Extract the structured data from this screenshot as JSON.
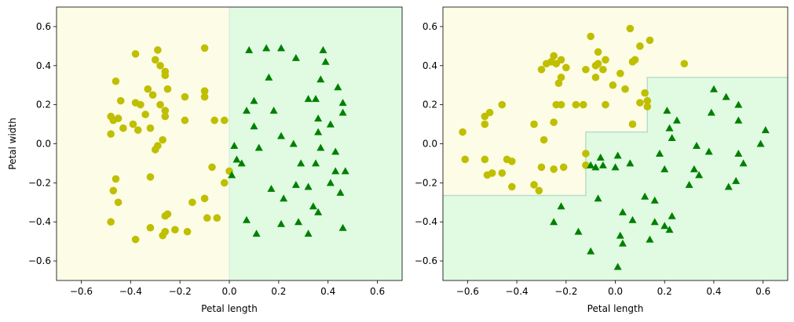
{
  "chart_data": [
    {
      "type": "scatter",
      "xlabel": "Petal length",
      "ylabel": "Petal width",
      "xlim": [
        -0.7,
        0.7
      ],
      "ylim": [
        -0.7,
        0.7
      ],
      "xticks": [
        "−0.6",
        "−0.4",
        "−0.2",
        "0.0",
        "0.2",
        "0.4",
        "0.6"
      ],
      "yticks": [
        "−0.6",
        "−0.4",
        "−0.2",
        "0.0",
        "0.2",
        "0.4",
        "0.6"
      ],
      "xtick_values": [
        -0.6,
        -0.4,
        -0.2,
        0.0,
        0.2,
        0.4,
        0.6
      ],
      "ytick_values": [
        -0.6,
        -0.4,
        -0.2,
        0.0,
        0.2,
        0.4,
        0.6
      ],
      "decision_regions": {
        "class_0_color": "#fdfce6",
        "class_1_color": "#e0fbe2",
        "boundary": [
          [
            -0.7,
            0.0
          ],
          [
            0.7,
            0.0
          ]
        ],
        "boundary_orientation": "vertical",
        "boundary_x": 0.0
      },
      "series": [
        {
          "marker": "circle",
          "color": "#bfbf00",
          "points": [
            [
              -0.38,
              0.46
            ],
            [
              -0.29,
              0.48
            ],
            [
              -0.3,
              0.43
            ],
            [
              -0.1,
              0.49
            ],
            [
              -0.28,
              0.4
            ],
            [
              -0.26,
              0.37
            ],
            [
              -0.26,
              0.35
            ],
            [
              -0.46,
              0.32
            ],
            [
              -0.33,
              0.28
            ],
            [
              -0.25,
              0.28
            ],
            [
              -0.31,
              0.25
            ],
            [
              -0.1,
              0.27
            ],
            [
              -0.1,
              0.24
            ],
            [
              -0.38,
              0.21
            ],
            [
              -0.36,
              0.2
            ],
            [
              -0.44,
              0.22
            ],
            [
              -0.43,
              0.08
            ],
            [
              -0.28,
              0.2
            ],
            [
              -0.34,
              0.15
            ],
            [
              -0.26,
              0.17
            ],
            [
              -0.18,
              0.24
            ],
            [
              -0.18,
              0.12
            ],
            [
              -0.48,
              0.14
            ],
            [
              -0.47,
              0.12
            ],
            [
              -0.45,
              0.13
            ],
            [
              -0.39,
              0.1
            ],
            [
              -0.37,
              0.07
            ],
            [
              -0.32,
              0.08
            ],
            [
              -0.26,
              0.14
            ],
            [
              -0.27,
              0.02
            ],
            [
              -0.48,
              0.05
            ],
            [
              -0.3,
              -0.03
            ],
            [
              -0.29,
              -0.01
            ],
            [
              -0.06,
              0.12
            ],
            [
              -0.02,
              0.12
            ],
            [
              -0.07,
              -0.12
            ],
            [
              -0.46,
              -0.18
            ],
            [
              -0.47,
              -0.24
            ],
            [
              -0.32,
              -0.17
            ],
            [
              -0.45,
              -0.3
            ],
            [
              -0.15,
              -0.3
            ],
            [
              -0.1,
              -0.28
            ],
            [
              -0.26,
              -0.37
            ],
            [
              -0.25,
              -0.36
            ],
            [
              -0.48,
              -0.4
            ],
            [
              -0.32,
              -0.43
            ],
            [
              -0.27,
              -0.47
            ],
            [
              -0.26,
              -0.45
            ],
            [
              -0.22,
              -0.44
            ],
            [
              -0.17,
              -0.45
            ],
            [
              -0.09,
              -0.38
            ],
            [
              -0.05,
              -0.38
            ],
            [
              -0.38,
              -0.49
            ],
            [
              -0.02,
              -0.2
            ],
            [
              0.0,
              -0.14
            ]
          ]
        },
        {
          "marker": "triangle",
          "color": "#008000",
          "points": [
            [
              0.08,
              0.48
            ],
            [
              0.15,
              0.49
            ],
            [
              0.21,
              0.49
            ],
            [
              0.27,
              0.44
            ],
            [
              0.38,
              0.48
            ],
            [
              0.39,
              0.42
            ],
            [
              0.37,
              0.33
            ],
            [
              0.16,
              0.34
            ],
            [
              0.44,
              0.29
            ],
            [
              0.46,
              0.21
            ],
            [
              0.32,
              0.23
            ],
            [
              0.35,
              0.23
            ],
            [
              0.46,
              0.16
            ],
            [
              0.1,
              0.22
            ],
            [
              0.18,
              0.17
            ],
            [
              0.07,
              0.17
            ],
            [
              0.36,
              0.13
            ],
            [
              0.41,
              0.1
            ],
            [
              0.1,
              0.09
            ],
            [
              0.21,
              0.04
            ],
            [
              0.26,
              0.0
            ],
            [
              0.36,
              0.06
            ],
            [
              0.02,
              -0.01
            ],
            [
              0.12,
              -0.02
            ],
            [
              0.37,
              -0.02
            ],
            [
              0.43,
              -0.04
            ],
            [
              0.03,
              -0.08
            ],
            [
              0.05,
              -0.1
            ],
            [
              0.01,
              -0.16
            ],
            [
              0.29,
              -0.1
            ],
            [
              0.35,
              -0.1
            ],
            [
              0.43,
              -0.14
            ],
            [
              0.47,
              -0.14
            ],
            [
              0.17,
              -0.23
            ],
            [
              0.27,
              -0.21
            ],
            [
              0.32,
              -0.22
            ],
            [
              0.41,
              -0.2
            ],
            [
              0.45,
              -0.25
            ],
            [
              0.22,
              -0.28
            ],
            [
              0.34,
              -0.32
            ],
            [
              0.36,
              -0.35
            ],
            [
              0.07,
              -0.39
            ],
            [
              0.21,
              -0.41
            ],
            [
              0.11,
              -0.46
            ],
            [
              0.32,
              -0.46
            ],
            [
              0.46,
              -0.43
            ],
            [
              0.28,
              -0.4
            ]
          ]
        }
      ]
    },
    {
      "type": "scatter",
      "xlabel": "Petal length",
      "ylabel": "",
      "xlim": [
        -0.7,
        0.7
      ],
      "ylim": [
        -0.7,
        0.7
      ],
      "xticks": [
        "−0.6",
        "−0.4",
        "−0.2",
        "0.0",
        "0.2",
        "0.4",
        "0.6"
      ],
      "yticks": [
        "−0.6",
        "−0.4",
        "−0.2",
        "0.0",
        "0.2",
        "0.4",
        "0.6"
      ],
      "xtick_values": [
        -0.6,
        -0.4,
        -0.2,
        0.0,
        0.2,
        0.4,
        0.6
      ],
      "ytick_values": [
        -0.6,
        -0.4,
        -0.2,
        0.0,
        0.2,
        0.4,
        0.6
      ],
      "decision_regions": {
        "class_0_color": "#fdfce6",
        "class_1_color": "#e0fbe2",
        "boundary_orientation": "staircase",
        "boundary": [
          [
            -0.7,
            -0.265
          ],
          [
            -0.12,
            -0.265
          ],
          [
            -0.12,
            0.06
          ],
          [
            0.13,
            0.06
          ],
          [
            0.13,
            0.34
          ],
          [
            0.7,
            0.34
          ]
        ]
      },
      "series": [
        {
          "marker": "circle",
          "color": "#bfbf00",
          "points": [
            [
              0.06,
              0.59
            ],
            [
              -0.1,
              0.55
            ],
            [
              0.14,
              0.53
            ],
            [
              0.1,
              0.5
            ],
            [
              -0.07,
              0.47
            ],
            [
              -0.25,
              0.45
            ],
            [
              -0.22,
              0.43
            ],
            [
              -0.04,
              0.43
            ],
            [
              -0.26,
              0.42
            ],
            [
              -0.28,
              0.41
            ],
            [
              -0.24,
              0.41
            ],
            [
              0.07,
              0.42
            ],
            [
              0.08,
              0.43
            ],
            [
              -0.07,
              0.41
            ],
            [
              -0.08,
              0.4
            ],
            [
              -0.3,
              0.38
            ],
            [
              -0.2,
              0.39
            ],
            [
              -0.12,
              0.38
            ],
            [
              -0.05,
              0.38
            ],
            [
              -0.08,
              0.34
            ],
            [
              0.02,
              0.36
            ],
            [
              -0.22,
              0.34
            ],
            [
              -0.23,
              0.31
            ],
            [
              -0.01,
              0.3
            ],
            [
              0.28,
              0.41
            ],
            [
              0.12,
              0.26
            ],
            [
              0.13,
              0.22
            ],
            [
              0.1,
              0.21
            ],
            [
              0.13,
              0.19
            ],
            [
              0.04,
              0.28
            ],
            [
              -0.53,
              0.14
            ],
            [
              -0.62,
              0.06
            ],
            [
              -0.46,
              0.2
            ],
            [
              -0.51,
              0.16
            ],
            [
              -0.24,
              0.2
            ],
            [
              -0.22,
              0.2
            ],
            [
              -0.16,
              0.2
            ],
            [
              -0.13,
              0.2
            ],
            [
              -0.04,
              0.2
            ],
            [
              -0.33,
              0.1
            ],
            [
              -0.25,
              0.11
            ],
            [
              -0.29,
              0.02
            ],
            [
              0.07,
              0.1
            ],
            [
              -0.53,
              0.1
            ],
            [
              -0.61,
              -0.08
            ],
            [
              -0.53,
              -0.08
            ],
            [
              -0.44,
              -0.08
            ],
            [
              -0.42,
              -0.09
            ],
            [
              -0.52,
              -0.16
            ],
            [
              -0.5,
              -0.15
            ],
            [
              -0.46,
              -0.15
            ],
            [
              -0.3,
              -0.12
            ],
            [
              -0.25,
              -0.13
            ],
            [
              -0.21,
              -0.12
            ],
            [
              -0.42,
              -0.22
            ],
            [
              -0.33,
              -0.21
            ],
            [
              -0.31,
              -0.24
            ],
            [
              -0.12,
              -0.11
            ],
            [
              -0.12,
              -0.05
            ]
          ]
        },
        {
          "marker": "triangle",
          "color": "#008000",
          "points": [
            [
              0.4,
              0.28
            ],
            [
              0.45,
              0.24
            ],
            [
              0.5,
              0.2
            ],
            [
              0.21,
              0.17
            ],
            [
              0.39,
              0.16
            ],
            [
              0.25,
              0.12
            ],
            [
              0.22,
              0.08
            ],
            [
              0.5,
              0.12
            ],
            [
              0.61,
              0.07
            ],
            [
              0.23,
              0.03
            ],
            [
              0.59,
              0.0
            ],
            [
              0.33,
              -0.01
            ],
            [
              0.38,
              -0.04
            ],
            [
              0.5,
              -0.05
            ],
            [
              0.18,
              -0.05
            ],
            [
              0.06,
              -0.1
            ],
            [
              -0.05,
              -0.11
            ],
            [
              0.01,
              -0.06
            ],
            [
              -0.1,
              -0.11
            ],
            [
              -0.08,
              -0.12
            ],
            [
              -0.06,
              -0.07
            ],
            [
              0.0,
              -0.12
            ],
            [
              0.2,
              -0.13
            ],
            [
              0.34,
              -0.16
            ],
            [
              0.32,
              -0.13
            ],
            [
              0.52,
              -0.1
            ],
            [
              0.3,
              -0.21
            ],
            [
              0.46,
              -0.22
            ],
            [
              0.49,
              -0.19
            ],
            [
              0.12,
              -0.27
            ],
            [
              0.16,
              -0.29
            ],
            [
              -0.22,
              -0.32
            ],
            [
              -0.07,
              -0.28
            ],
            [
              -0.25,
              -0.4
            ],
            [
              0.03,
              -0.35
            ],
            [
              0.07,
              -0.39
            ],
            [
              0.16,
              -0.4
            ],
            [
              0.23,
              -0.37
            ],
            [
              0.2,
              -0.42
            ],
            [
              0.22,
              -0.44
            ],
            [
              -0.15,
              -0.45
            ],
            [
              0.02,
              -0.47
            ],
            [
              0.03,
              -0.51
            ],
            [
              0.14,
              -0.49
            ],
            [
              -0.1,
              -0.55
            ],
            [
              0.01,
              -0.63
            ]
          ]
        }
      ]
    }
  ]
}
